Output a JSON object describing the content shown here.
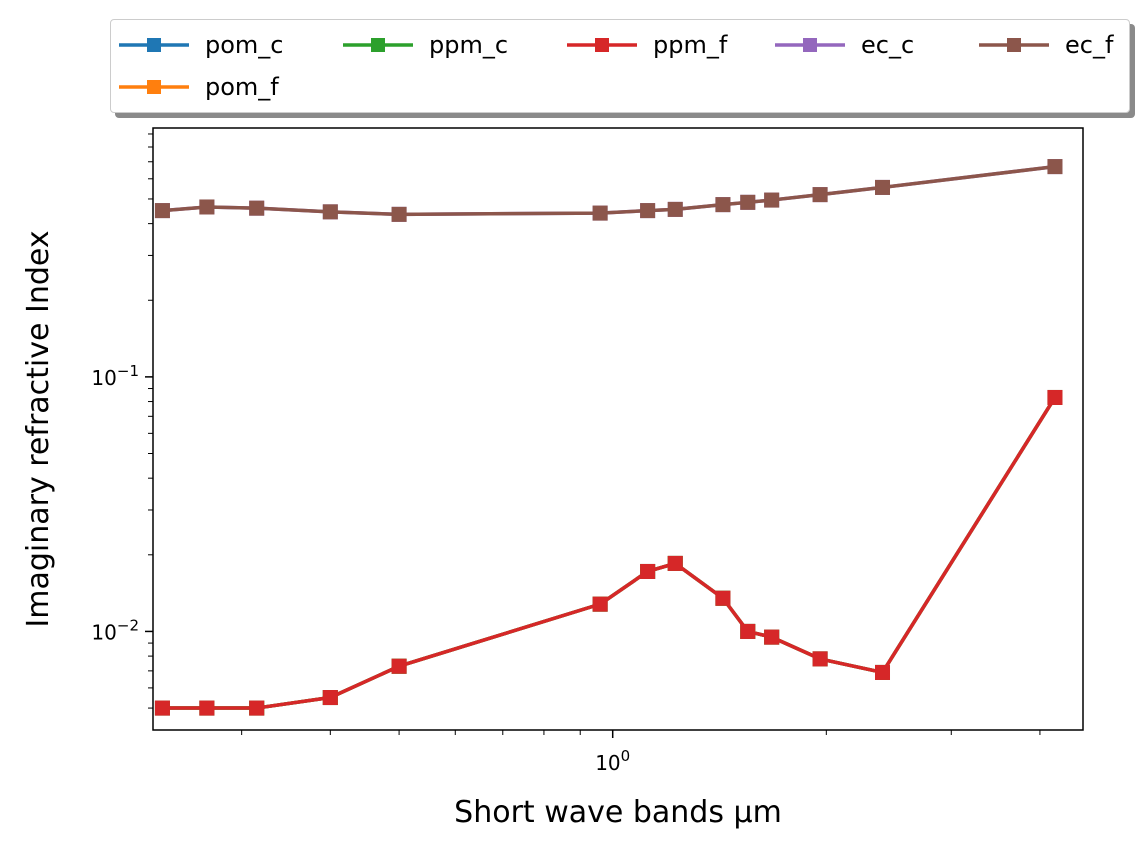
{
  "chart_data": {
    "type": "line",
    "xlabel": "Short wave bands μm",
    "ylabel": "Imaginary refractive Index",
    "x_scale": "log",
    "y_scale": "log",
    "xlim": [
      0.225,
      4.6
    ],
    "ylim": [
      0.0041,
      0.95
    ],
    "x_major_ticks": [
      {
        "value": 1,
        "label": "10^0"
      }
    ],
    "y_major_ticks": [
      {
        "value": 0.1,
        "label": "10^-1"
      },
      {
        "value": 0.01,
        "label": "10^-2"
      }
    ],
    "x": [
      0.232,
      0.268,
      0.315,
      0.4,
      0.5,
      0.96,
      1.12,
      1.225,
      1.43,
      1.55,
      1.675,
      1.96,
      2.4,
      4.2
    ],
    "series": [
      {
        "name": "pom_c",
        "color": "#1f77b4",
        "values": [
          0.005,
          0.005,
          0.005,
          0.0055,
          0.0073,
          0.0128,
          0.0172,
          0.0185,
          0.0135,
          0.01,
          0.0095,
          0.0078,
          0.0069,
          0.083
        ]
      },
      {
        "name": "pom_f",
        "color": "#ff7f0e",
        "values": [
          0.005,
          0.005,
          0.005,
          0.0055,
          0.0073,
          0.0128,
          0.0172,
          0.0185,
          0.0135,
          0.01,
          0.0095,
          0.0078,
          0.0069,
          0.083
        ]
      },
      {
        "name": "ppm_c",
        "color": "#2ca02c",
        "values": [
          0.005,
          0.005,
          0.005,
          0.0055,
          0.0073,
          0.0128,
          0.0172,
          0.0185,
          0.0135,
          0.01,
          0.0095,
          0.0078,
          0.0069,
          0.083
        ]
      },
      {
        "name": "ppm_f",
        "color": "#d62728",
        "values": [
          0.005,
          0.005,
          0.005,
          0.0055,
          0.0073,
          0.0128,
          0.0172,
          0.0185,
          0.0135,
          0.01,
          0.0095,
          0.0078,
          0.0069,
          0.083
        ]
      },
      {
        "name": "ec_c",
        "color": "#9467bd",
        "values": [
          0.45,
          0.465,
          0.46,
          0.445,
          0.435,
          0.44,
          0.45,
          0.455,
          0.475,
          0.485,
          0.495,
          0.52,
          0.555,
          0.67
        ]
      },
      {
        "name": "ec_f",
        "color": "#8c564b",
        "values": [
          0.45,
          0.465,
          0.46,
          0.445,
          0.435,
          0.44,
          0.45,
          0.455,
          0.475,
          0.485,
          0.495,
          0.52,
          0.555,
          0.67
        ]
      }
    ],
    "legend_placement": "top-center",
    "legend_columns": 5,
    "grid": false,
    "marker": "square"
  }
}
